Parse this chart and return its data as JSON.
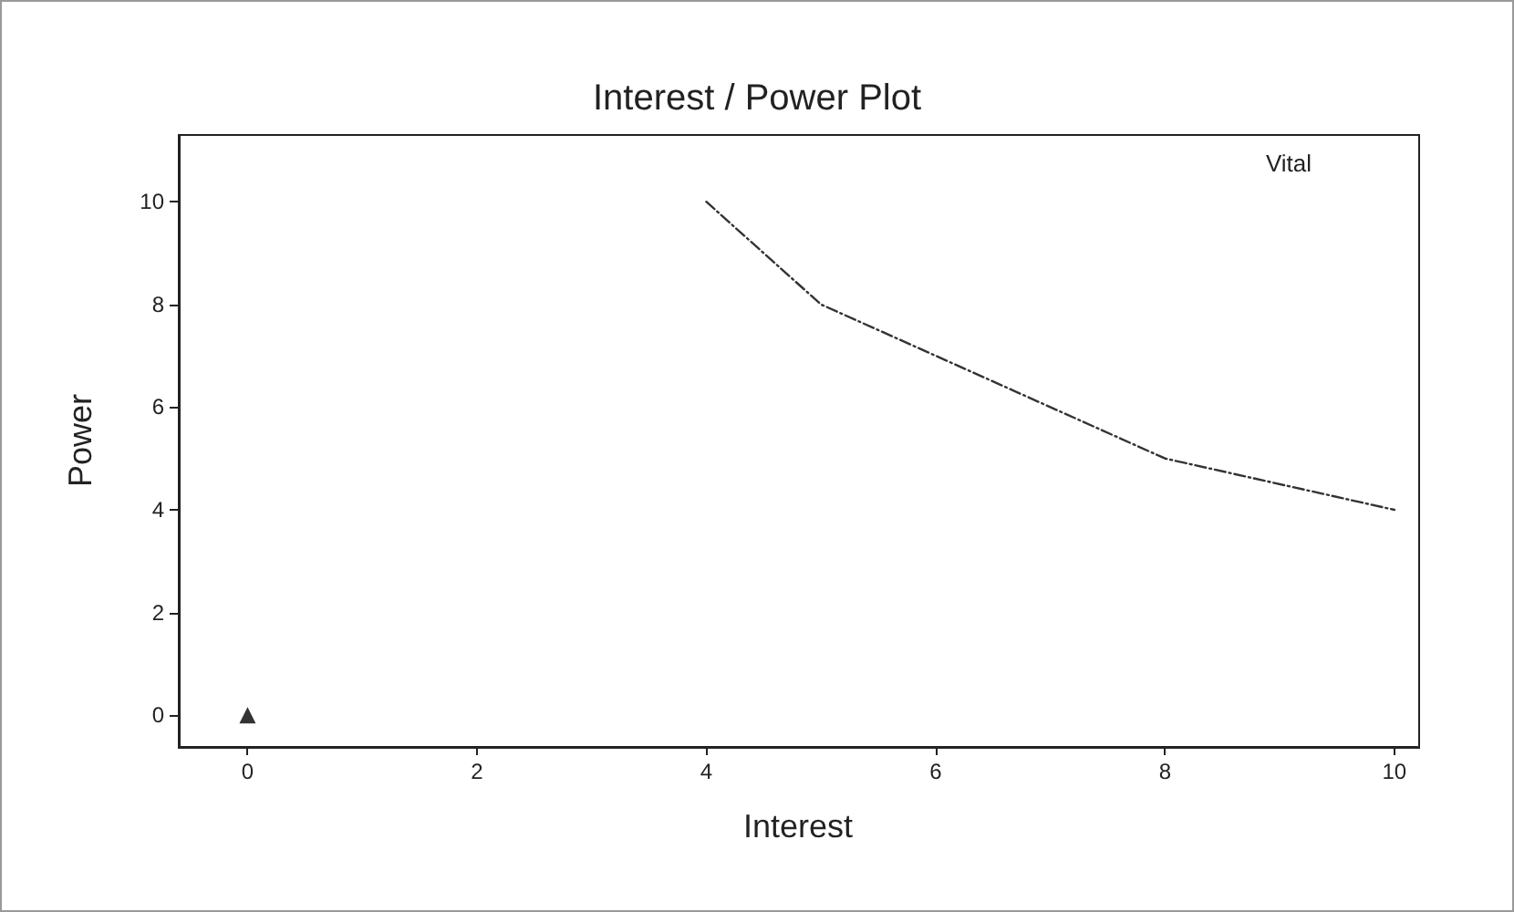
{
  "chart_data": {
    "type": "line",
    "title": "Interest / Power Plot",
    "xlabel": "Interest",
    "ylabel": "Power",
    "annotations": [
      "Vital"
    ],
    "series": [
      {
        "color": "#333333",
        "x": [
          4,
          5,
          8,
          10
        ],
        "values": [
          10,
          8,
          5,
          4
        ],
        "line_style": "dashed",
        "marker": "none"
      },
      {
        "type": "scatter",
        "color": "#000000",
        "x": [
          0
        ],
        "values": [
          0
        ],
        "marker": "triangle"
      }
    ],
    "xlim": [
      -0.6,
      10.2
    ],
    "xticks": [
      0,
      2,
      4,
      6,
      8,
      10
    ],
    "ylim": [
      -0.6,
      11.3
    ],
    "yticks": [
      0,
      2,
      4,
      6,
      8,
      10
    ]
  }
}
